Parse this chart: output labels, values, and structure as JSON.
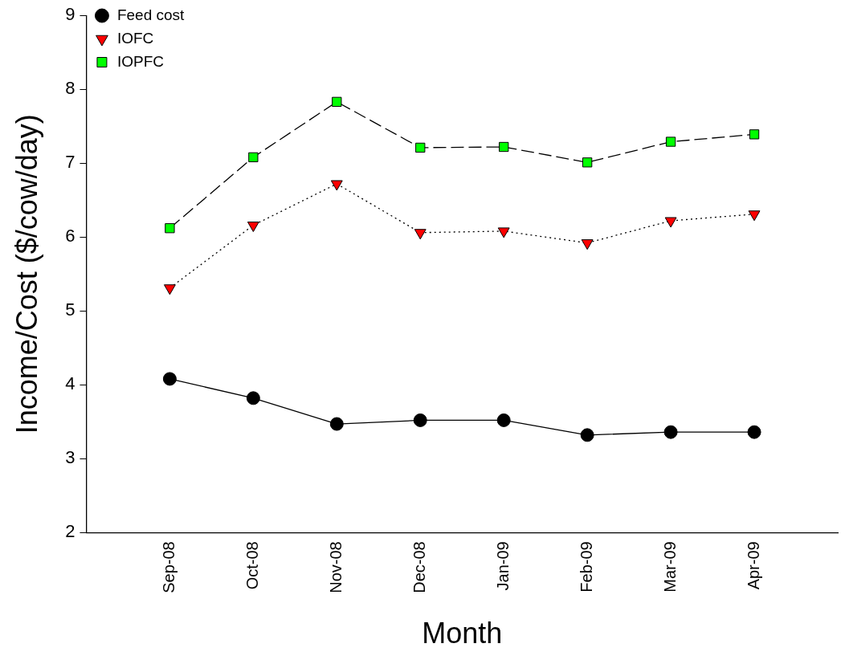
{
  "chart_data": {
    "type": "line",
    "xlabel": "Month",
    "ylabel": "Income/Cost ($/cow/day)",
    "categories": [
      "Sep-08",
      "Oct-08",
      "Nov-08",
      "Dec-08",
      "Jan-09",
      "Feb-09",
      "Mar-09",
      "Apr-09"
    ],
    "ylim": [
      2,
      9
    ],
    "yticks": [
      2,
      3,
      4,
      5,
      6,
      7,
      8,
      9
    ],
    "grid": false,
    "legend": "top left",
    "series": [
      {
        "name": "Feed cost",
        "color": "#000000",
        "marker": "circle",
        "line_style": "solid",
        "values": [
          4.08,
          3.82,
          3.47,
          3.52,
          3.52,
          3.32,
          3.36,
          3.36
        ]
      },
      {
        "name": "IOFC",
        "color": "#ff0000",
        "marker": "triangle",
        "line_style": "dotted",
        "values": [
          5.31,
          6.16,
          6.72,
          6.06,
          6.08,
          5.92,
          6.22,
          6.31
        ]
      },
      {
        "name": "IOPFC",
        "color": "#00ff00",
        "marker": "square",
        "line_style": "dashed",
        "values": [
          6.12,
          7.08,
          7.83,
          7.21,
          7.22,
          7.01,
          7.29,
          7.39
        ]
      }
    ]
  }
}
